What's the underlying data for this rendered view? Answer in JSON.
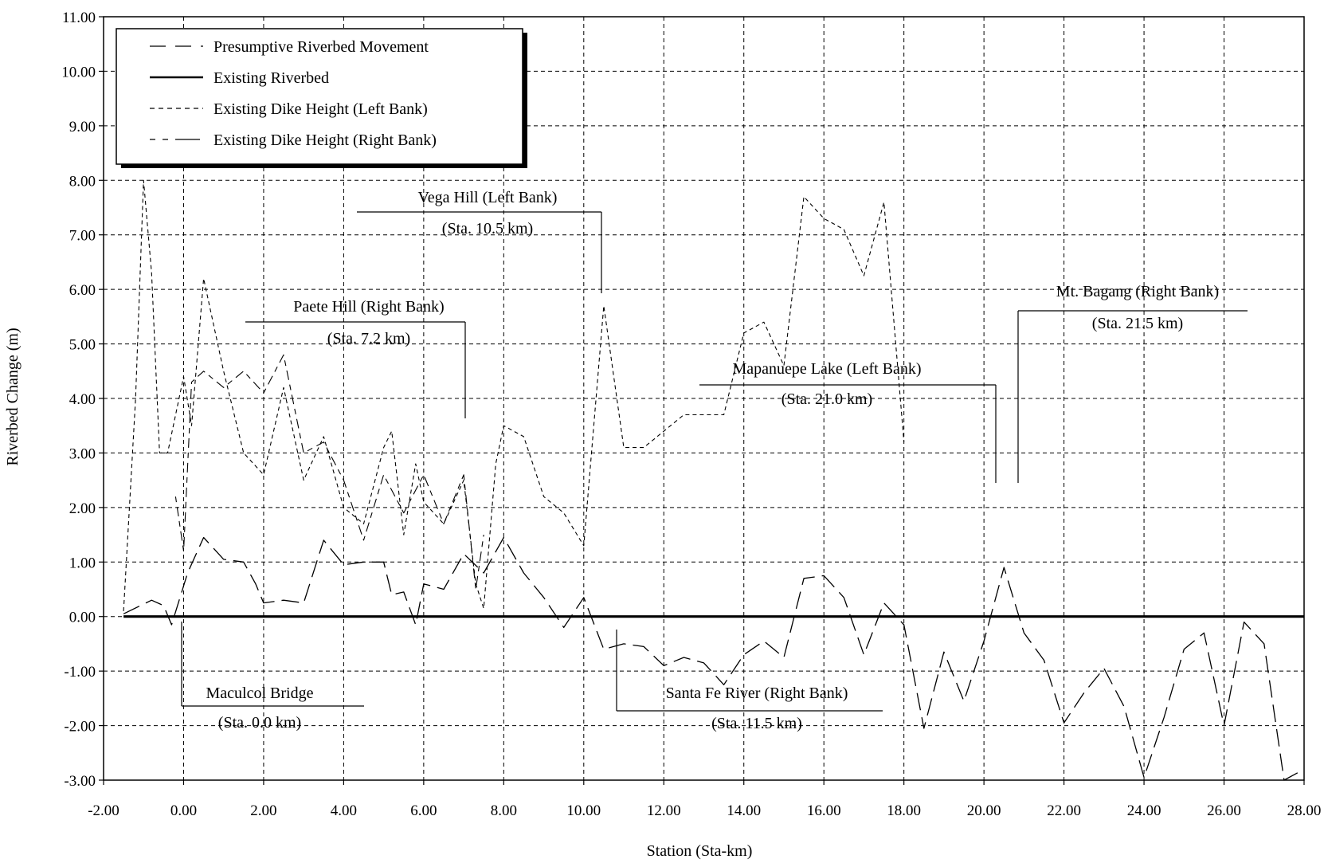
{
  "chart_data": {
    "type": "line",
    "xlabel": "Station (Sta-km)",
    "ylabel": "Riverbed Change (m)",
    "xlim": [
      -2,
      28
    ],
    "ylim": [
      -3,
      11
    ],
    "x_ticks": [
      -2,
      0,
      2,
      4,
      6,
      8,
      10,
      12,
      14,
      16,
      18,
      20,
      22,
      24,
      26,
      28
    ],
    "y_ticks": [
      -3,
      -2,
      -1,
      0,
      1,
      2,
      3,
      4,
      5,
      6,
      7,
      8,
      9,
      10,
      11
    ],
    "x_tick_labels": [
      "-2.00",
      "0.00",
      "2.00",
      "4.00",
      "6.00",
      "8.00",
      "10.00",
      "12.00",
      "14.00",
      "16.00",
      "18.00",
      "20.00",
      "22.00",
      "24.00",
      "26.00",
      "28.00"
    ],
    "y_tick_labels": [
      "-3.00",
      "-2.00",
      "-1.00",
      "0.00",
      "1.00",
      "2.00",
      "3.00",
      "4.00",
      "5.00",
      "6.00",
      "7.00",
      "8.00",
      "9.00",
      "10.00",
      "11.00"
    ],
    "grid": true,
    "legend_position": "top-left",
    "series": [
      {
        "name": "Presumptive Riverbed Movement",
        "style": "longdash",
        "x": [
          -1.5,
          -0.8,
          -0.5,
          -0.3,
          0.1,
          0.5,
          1.0,
          1.5,
          1.8,
          2.0,
          2.5,
          3.0,
          3.5,
          4.0,
          4.5,
          5.0,
          5.2,
          5.5,
          5.8,
          6.0,
          6.5,
          7.0,
          7.5,
          8.0,
          8.5,
          9.0,
          9.5,
          10.0,
          10.5,
          11.0,
          11.5,
          12.0,
          12.5,
          13.0,
          13.5,
          14.0,
          14.5,
          15.0,
          15.5,
          16.0,
          16.5,
          17.0,
          17.5,
          18.0,
          18.5,
          19.0,
          19.5,
          20.0,
          20.5,
          21.0,
          21.5,
          22.0,
          22.5,
          23.0,
          23.5,
          24.0,
          24.5,
          25.0,
          25.5,
          26.0,
          26.5,
          27.0,
          27.5,
          28.0
        ],
        "y": [
          0.05,
          0.3,
          0.2,
          -0.15,
          0.8,
          1.45,
          1.05,
          1.0,
          0.6,
          0.25,
          0.3,
          0.25,
          1.4,
          0.95,
          1.0,
          1.0,
          0.4,
          0.45,
          -0.15,
          0.6,
          0.5,
          1.15,
          0.8,
          1.45,
          0.8,
          0.35,
          -0.2,
          0.35,
          -0.6,
          -0.5,
          -0.55,
          -0.9,
          -0.75,
          -0.85,
          -1.25,
          -0.7,
          -0.45,
          -0.75,
          0.7,
          0.75,
          0.35,
          -0.7,
          0.25,
          -0.15,
          -2.05,
          -0.65,
          -1.55,
          -0.45,
          0.9,
          -0.3,
          -0.8,
          -1.95,
          -1.4,
          -0.95,
          -1.65,
          -2.95,
          -1.85,
          -0.6,
          -0.3,
          -2.0,
          -0.1,
          -0.5,
          -3.0,
          -2.8
        ]
      },
      {
        "name": "Existing Riverbed",
        "style": "solid",
        "x": [
          -1.5,
          28.0
        ],
        "y": [
          0.0,
          0.0
        ]
      },
      {
        "name": "Existing Dike Height (Left Bank)",
        "style": "shortdash",
        "x": [
          -1.5,
          -1.2,
          -1.0,
          -0.8,
          -0.6,
          -0.4,
          0.0,
          0.2,
          0.5,
          1.0,
          1.5,
          2.0,
          2.5,
          3.0,
          3.5,
          4.0,
          4.5,
          5.0,
          5.2,
          5.5,
          5.8,
          6.0,
          6.5,
          7.0,
          7.3,
          7.5,
          7.8,
          8.0,
          8.5,
          9.0,
          9.5,
          10.0,
          10.5,
          11.0,
          11.5,
          12.0,
          12.5,
          13.0,
          13.5,
          14.0,
          14.5,
          15.0,
          15.5,
          16.0,
          16.5,
          17.0,
          17.5,
          18.0
        ],
        "y": [
          0.1,
          4.0,
          8.0,
          6.3,
          3.0,
          3.0,
          4.4,
          3.5,
          6.2,
          4.5,
          3.0,
          2.6,
          4.2,
          2.5,
          3.3,
          2.0,
          1.7,
          3.1,
          3.4,
          1.5,
          2.8,
          2.1,
          1.7,
          2.5,
          0.6,
          0.15,
          2.8,
          3.5,
          3.3,
          2.2,
          1.9,
          1.3,
          5.7,
          3.1,
          3.1,
          3.4,
          3.7,
          3.7,
          3.7,
          5.2,
          5.4,
          4.6,
          7.7,
          7.3,
          7.1,
          6.25,
          7.6,
          3.2
        ]
      },
      {
        "name": "Existing Dike Height (Right Bank)",
        "style": "dashdot",
        "x": [
          -0.2,
          0.0,
          0.2,
          0.5,
          1.0,
          1.5,
          2.0,
          2.5,
          3.0,
          3.5,
          4.0,
          4.5,
          5.0,
          5.5,
          6.0,
          6.5,
          7.0,
          7.3,
          7.5
        ],
        "y": [
          2.2,
          1.2,
          4.3,
          4.5,
          4.2,
          4.5,
          4.1,
          4.8,
          3.0,
          3.2,
          2.5,
          1.4,
          2.6,
          1.9,
          2.6,
          1.7,
          2.6,
          0.5,
          1.5
        ]
      }
    ],
    "annotations": [
      {
        "line1": "Vega Hill (Left Bank)",
        "line2": "(Sta. 10.5 km)",
        "station": 10.5
      },
      {
        "line1": "Paete Hill (Right Bank)",
        "line2": "(Sta. 7.2 km)",
        "station": 7.2
      },
      {
        "line1": "Mapanuepe Lake (Left Bank)",
        "line2": "(Sta. 21.0 km)",
        "station": 21.0
      },
      {
        "line1": "Mt. Bagang (Right Bank)",
        "line2": "(Sta. 21.5 km)",
        "station": 21.5
      },
      {
        "line1": "Maculcol Bridge",
        "line2": "(Sta. 0.0 km)",
        "station": 0.0
      },
      {
        "line1": "Santa Fe River (Right Bank)",
        "line2": "(Sta. 11.5 km)",
        "station": 11.5
      }
    ]
  }
}
